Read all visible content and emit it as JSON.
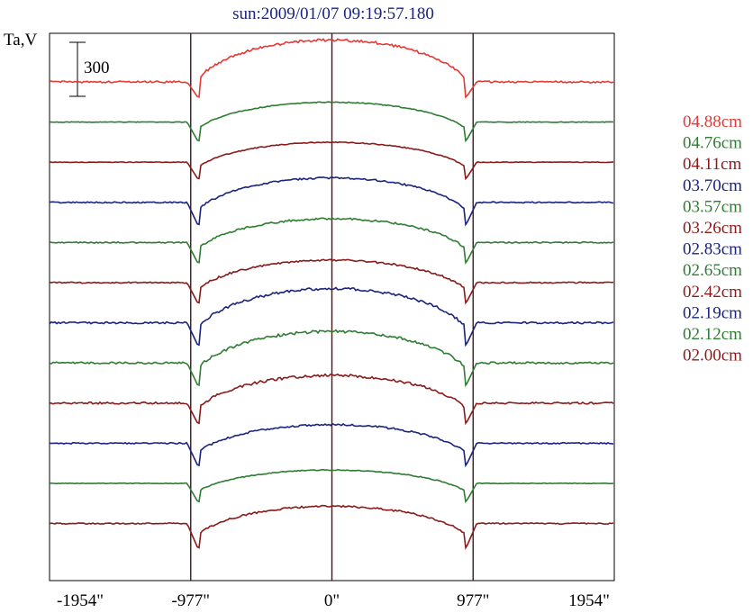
{
  "chart_data": {
    "type": "line",
    "title": "sun:2009/01/07 09:19:57.180",
    "ylabel": "Ta,V",
    "xlabel": "",
    "xlim": [
      -1954,
      1954
    ],
    "x_ticks": [
      "-1954\"",
      "-977\"",
      "0\"",
      "977\"",
      "1954\""
    ],
    "x_tick_values": [
      -1954,
      -977,
      0,
      977,
      1954
    ],
    "vertical_lines": [
      -977,
      0,
      977
    ],
    "scale_bar": {
      "label": "300",
      "value": 300
    },
    "legend_position": "right",
    "series": [
      {
        "name": "04.88cm",
        "color": "#e53935",
        "offset": 0,
        "limb_dip": 60,
        "peak": 96,
        "noise": 3
      },
      {
        "name": "04.76cm",
        "color": "#2e7d32",
        "offset": 1,
        "limb_dip": 74,
        "peak": 28,
        "noise": 1
      },
      {
        "name": "04.11cm",
        "color": "#8b1a1a",
        "offset": 2,
        "limb_dip": 65,
        "peak": 28,
        "noise": 1
      },
      {
        "name": "03.70cm",
        "color": "#1a237e",
        "offset": 3,
        "limb_dip": 88,
        "peak": 42,
        "noise": 2
      },
      {
        "name": "03.57cm",
        "color": "#2e7d32",
        "offset": 4,
        "limb_dip": 80,
        "peak": 40,
        "noise": 2
      },
      {
        "name": "03.26cm",
        "color": "#8b1a1a",
        "offset": 5,
        "limb_dip": 80,
        "peak": 36,
        "noise": 2
      },
      {
        "name": "02.83cm",
        "color": "#1a237e",
        "offset": 6,
        "limb_dip": 88,
        "peak": 72,
        "noise": 3
      },
      {
        "name": "02.65cm",
        "color": "#2e7d32",
        "offset": 7,
        "limb_dip": 88,
        "peak": 64,
        "noise": 3
      },
      {
        "name": "02.42cm",
        "color": "#8b1a1a",
        "offset": 8,
        "limb_dip": 80,
        "peak": 52,
        "noise": 3
      },
      {
        "name": "02.19cm",
        "color": "#1a237e",
        "offset": 9,
        "limb_dip": 88,
        "peak": 24,
        "noise": 2
      },
      {
        "name": "02.12cm",
        "color": "#2e7d32",
        "offset": 10,
        "limb_dip": 72,
        "peak": 8,
        "noise": 1
      },
      {
        "name": "02.00cm",
        "color": "#8b1a1a",
        "offset": 11,
        "limb_dip": 96,
        "peak": 20,
        "noise": 2
      }
    ]
  }
}
